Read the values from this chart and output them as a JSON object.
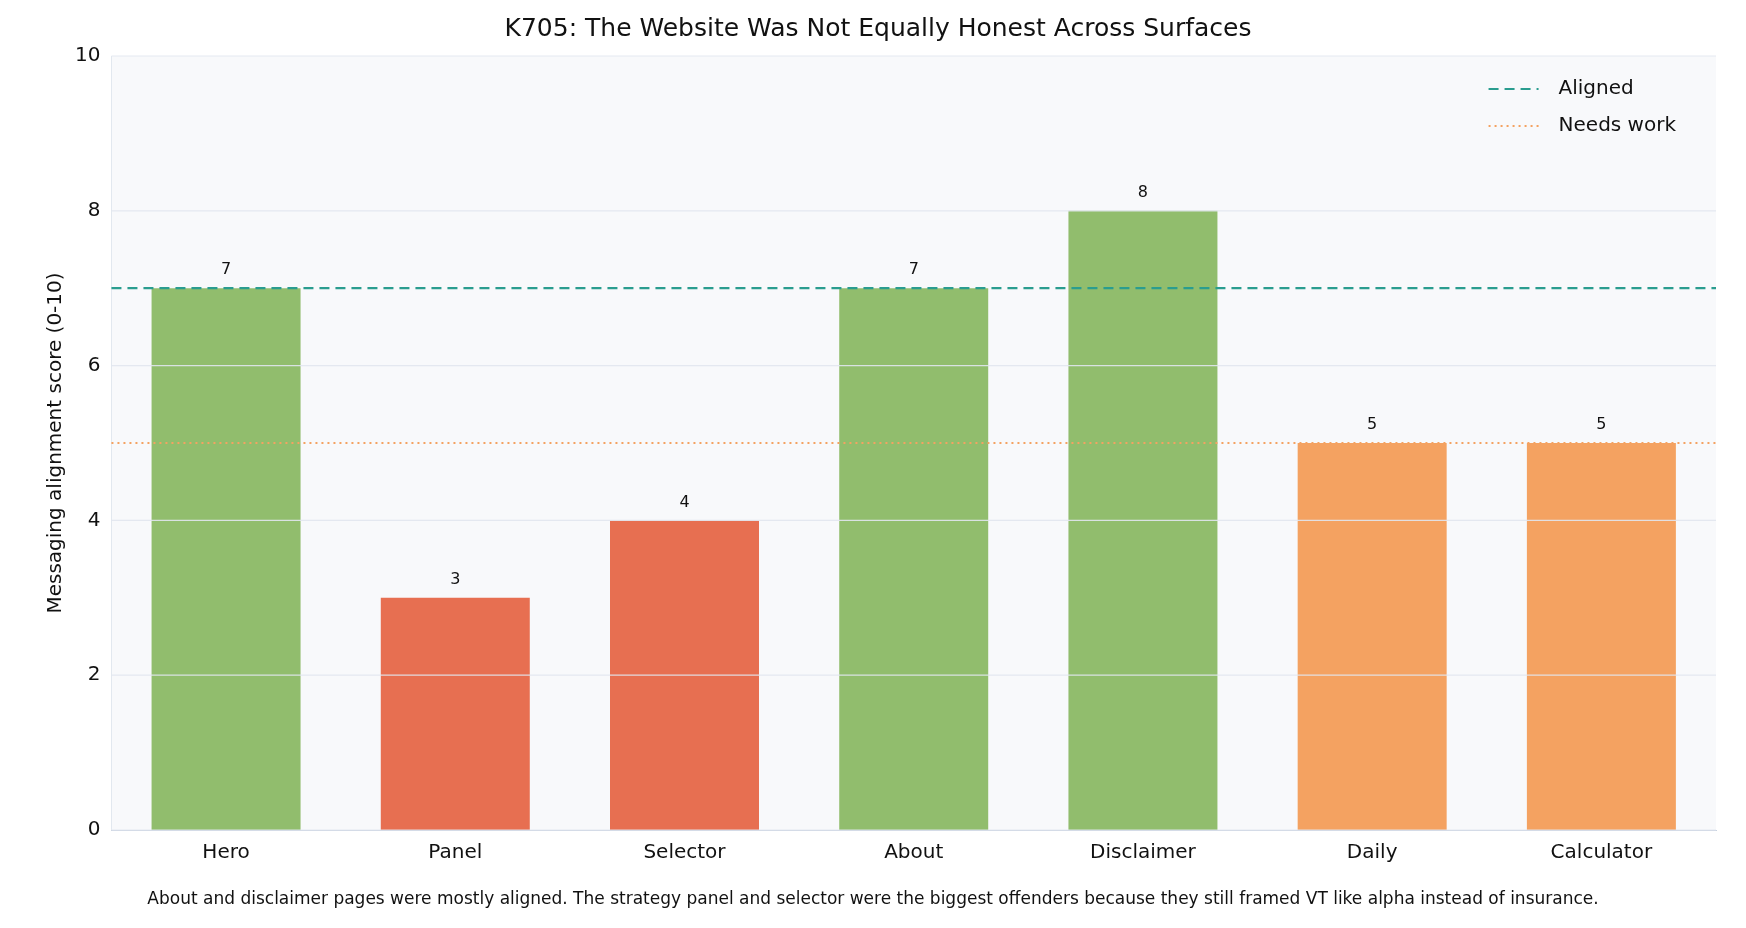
{
  "chart_data": {
    "type": "bar",
    "title": "K705: The Website Was Not Equally Honest Across Surfaces",
    "ylabel": "Messaging alignment score (0-10)",
    "categories": [
      "Hero",
      "Panel",
      "Selector",
      "About",
      "Disclaimer",
      "Daily",
      "Calculator"
    ],
    "values": [
      7,
      3,
      4,
      7,
      8,
      5,
      5
    ],
    "colors": [
      "#91bd6d",
      "#e76f51",
      "#e76f51",
      "#91bd6d",
      "#91bd6d",
      "#f4a261",
      "#f4a261"
    ],
    "data_labels": true,
    "ylim": [
      0,
      10
    ],
    "yticks": [
      0,
      2,
      4,
      6,
      8,
      10
    ],
    "grid": "y",
    "legend": "top right",
    "ref_lines": [
      {
        "axis": "y",
        "value": 7,
        "label": "Aligned",
        "color": "#2a9d8f",
        "line_style": "dashed"
      },
      {
        "axis": "y",
        "value": 5,
        "label": "Needs work",
        "color": "#f4a261",
        "line_style": "dotted"
      }
    ],
    "annotations": [
      "About and disclaimer pages were mostly aligned. The strategy panel and selector were the biggest offenders because they still framed VT like alpha instead of insurance."
    ]
  }
}
